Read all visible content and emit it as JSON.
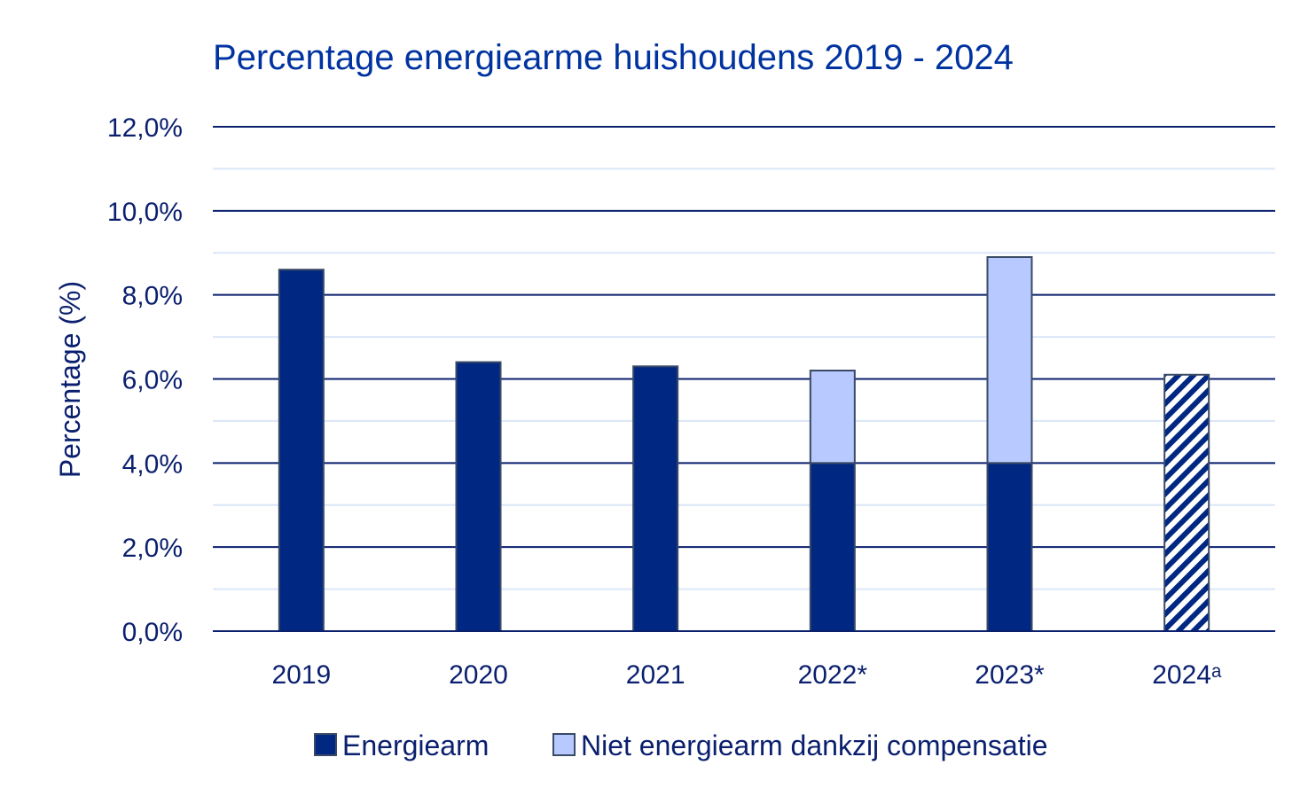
{
  "colors": {
    "title": "#0033a0",
    "axis_text": "#0a1f6e",
    "major_grid": "#0a1f6e",
    "minor_grid": "#dbe6f7",
    "energiearm": "#002882",
    "compensatie": "#b7c9ff",
    "bar_outline": "#3a4a66",
    "hatch_light": "#ffffff"
  },
  "chart_data": {
    "type": "bar",
    "stacked": true,
    "title": "Percentage energiearme huishoudens 2019 - 2024",
    "xlabel": "",
    "ylabel": "Percentage (%)",
    "ylim": [
      0,
      12
    ],
    "yticks": [
      0,
      2,
      4,
      6,
      8,
      10,
      12
    ],
    "ytick_labels": [
      "0,0%",
      "2,0%",
      "4,0%",
      "6,0%",
      "8,0%",
      "10,0%",
      "12,0%"
    ],
    "minor_gridlines_at": [
      1,
      3,
      5,
      7,
      9,
      11
    ],
    "grid": true,
    "categories": [
      "2019",
      "2020",
      "2021",
      "2022*",
      "2023*",
      "2024ᵃ"
    ],
    "series": [
      {
        "name": "Energiearm",
        "values": [
          8.6,
          6.4,
          6.3,
          4.0,
          4.0,
          6.1
        ],
        "color": "#002882",
        "hatched_categories": [
          "2024ᵃ"
        ]
      },
      {
        "name": "Niet energiearm dankzij compensatie",
        "values": [
          0,
          0,
          0,
          2.2,
          4.9,
          0
        ],
        "color": "#b7c9ff"
      }
    ],
    "legend": {
      "placement": "bottom",
      "entries": [
        "Energiearm",
        "Niet energiearm dankzij compensatie"
      ]
    }
  }
}
